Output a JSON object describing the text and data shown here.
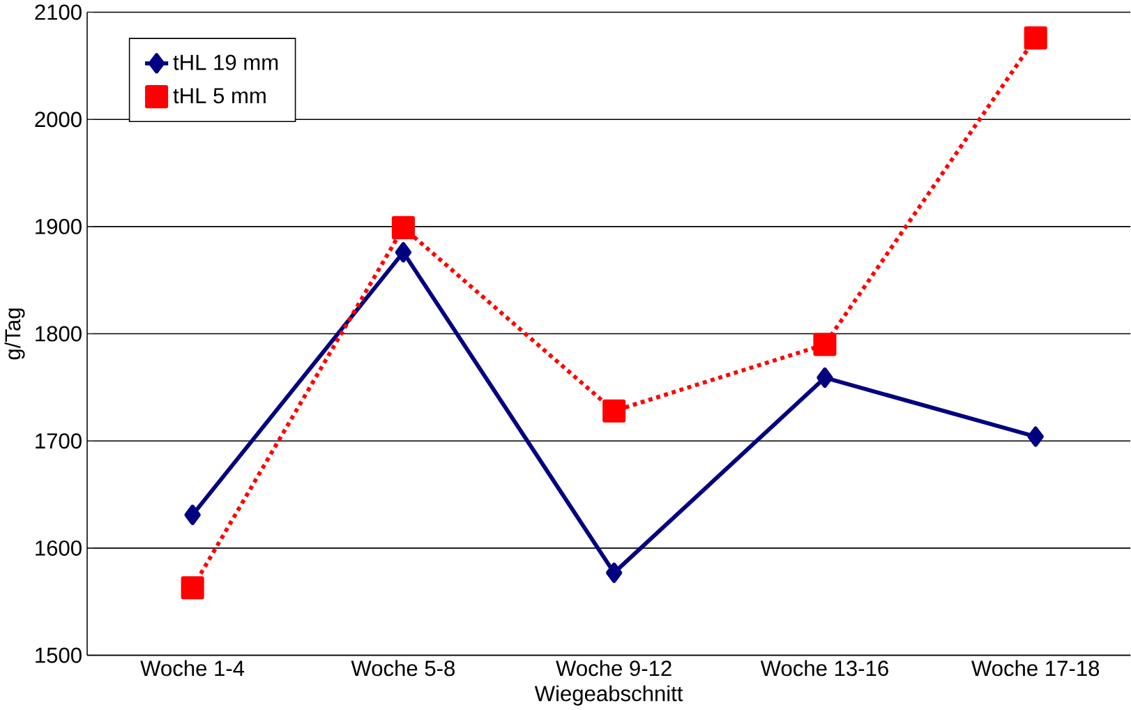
{
  "chart_data": {
    "type": "line",
    "xlabel": "Wiegeabschnitt",
    "ylabel": "g/Tag",
    "categories": [
      "Woche 1-4",
      "Woche 5-8",
      "Woche 9-12",
      "Woche 13-16",
      "Woche 17-18"
    ],
    "series": [
      {
        "name": "tHL 19 mm",
        "color": "#000080",
        "values": [
          1631,
          1876,
          1577,
          1759,
          1704
        ],
        "marker": "diamond",
        "line_style": "solid"
      },
      {
        "name": "tHL 5 mm",
        "color": "#ff0000",
        "values": [
          1563,
          1899,
          1728,
          1790,
          2076
        ],
        "marker": "square",
        "line_style": "dashed"
      }
    ],
    "ylim": [
      1500,
      2100
    ],
    "yticks": [
      1500,
      1600,
      1700,
      1800,
      1900,
      2000,
      2100
    ],
    "grid": "y",
    "legend": "top left"
  }
}
